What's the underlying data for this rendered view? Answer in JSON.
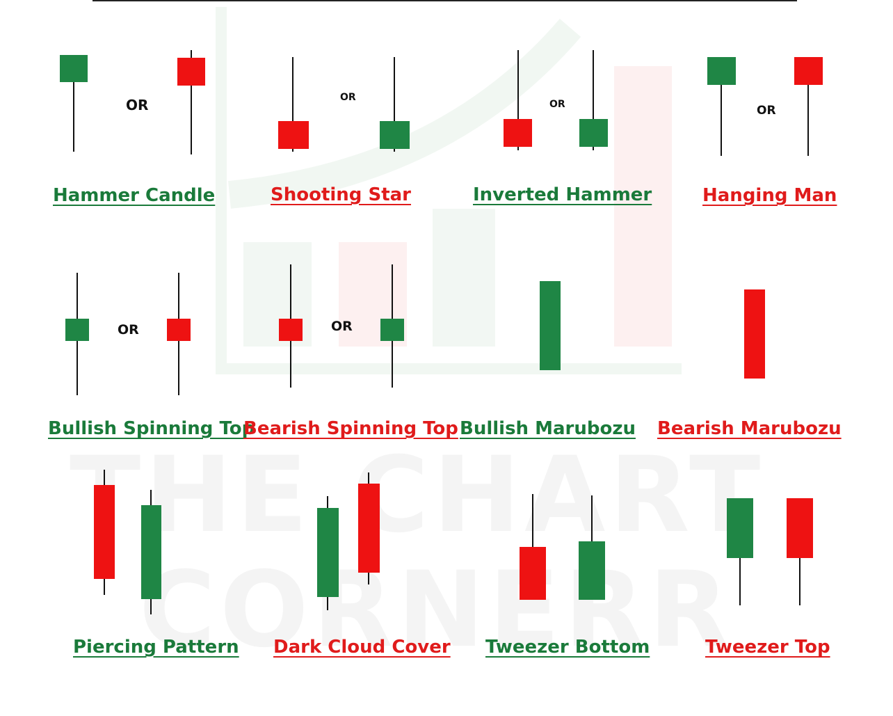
{
  "colors": {
    "bullish": "#1f8645",
    "bearish": "#ee1212",
    "bullish_text": "#1a7a3a",
    "bearish_text": "#e01b1b",
    "wick": "#111111"
  },
  "watermark": {
    "line1": "THE CHART",
    "line2": "CORNERR"
  },
  "connector_word": "OR",
  "patterns": [
    {
      "label": "Hammer Candle",
      "tone": "bullish"
    },
    {
      "label": "Shooting Star",
      "tone": "bearish"
    },
    {
      "label": "Inverted Hammer",
      "tone": "bullish"
    },
    {
      "label": "Hanging Man",
      "tone": "bearish"
    },
    {
      "label": "Bullish Spinning Top",
      "tone": "bullish"
    },
    {
      "label": "Bearish Spinning Top",
      "tone": "bearish"
    },
    {
      "label": "Bullish Marubozu",
      "tone": "bullish"
    },
    {
      "label": "Bearish Marubozu",
      "tone": "bearish"
    },
    {
      "label": "Piercing Pattern",
      "tone": "bullish"
    },
    {
      "label": "Dark Cloud Cover",
      "tone": "bearish"
    },
    {
      "label": "Tweezer Bottom",
      "tone": "bullish"
    },
    {
      "label": "Tweezer Top",
      "tone": "bearish"
    }
  ]
}
